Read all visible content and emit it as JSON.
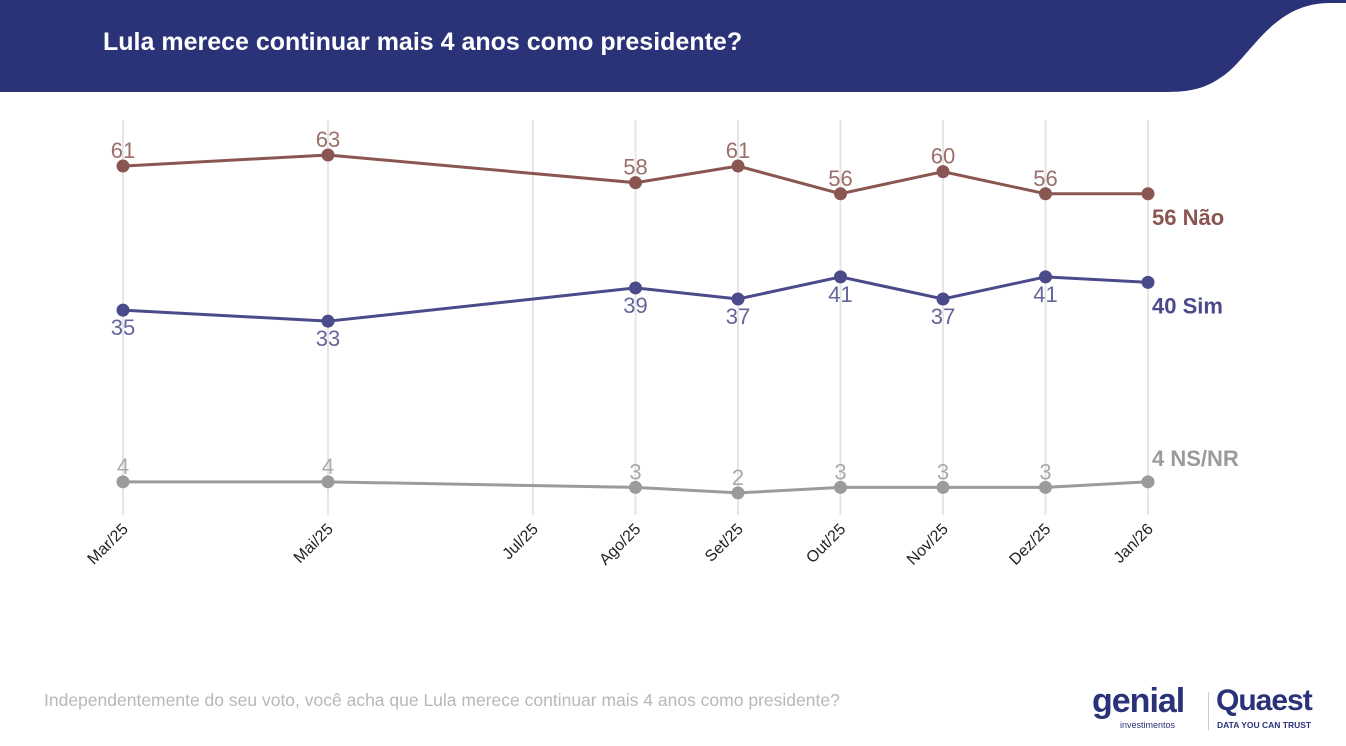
{
  "title": "Lula merece continuar mais 4 anos como presidente?",
  "footnote": "Independentemente do seu voto, você acha que Lula merece continuar mais 4 anos como presidente?",
  "logos": {
    "genial": "genial",
    "genial_sub": "investimentos",
    "quaest": "Quaest",
    "quaest_sub": "DATA YOU CAN TRUST"
  },
  "colors": {
    "header": "#2a3278",
    "nao": "#8a5652",
    "sim": "#4b4a8a",
    "nsnr": "#9b9b9b",
    "grid": "#e6e6e6"
  },
  "chart_data": {
    "type": "line",
    "title": "Lula merece continuar mais 4 anos como presidente?",
    "x": [
      "Mar/25",
      "Mai/25",
      "Ago/25",
      "Set/25",
      "Out/25",
      "Nov/25",
      "Dez/25",
      "Jan/26"
    ],
    "x_ticks": [
      "Mar/25",
      "Mai/25",
      "Jul/25",
      "Ago/25",
      "Set/25",
      "Out/25",
      "Nov/25",
      "Dez/25",
      "Jan/26"
    ],
    "grid": "vertical",
    "series": [
      {
        "name": "Não",
        "end_label": "56 Não",
        "color": "#8a5652",
        "values": [
          61,
          63,
          58,
          61,
          56,
          60,
          56,
          56
        ],
        "label_pos": "above"
      },
      {
        "name": "Sim",
        "end_label": "40 Sim",
        "color": "#4b4a8a",
        "values": [
          35,
          33,
          39,
          37,
          41,
          37,
          41,
          40
        ],
        "label_pos": "below"
      },
      {
        "name": "NS/NR",
        "end_label": "4 NS/NR",
        "color": "#9b9b9b",
        "values": [
          4,
          4,
          3,
          2,
          3,
          3,
          3,
          4
        ],
        "label_pos": "above"
      }
    ]
  }
}
